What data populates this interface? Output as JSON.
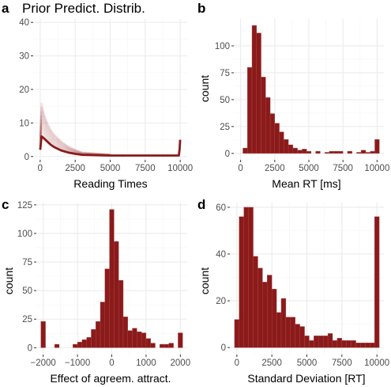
{
  "colors": {
    "bar_fill": "#8b1a1a",
    "bar_edge": "#a94a4a",
    "panel_bg": "#ffffff",
    "grid_major": "#ebebeb",
    "grid_minor": "#f5f5f5",
    "axis_line": "#333333"
  },
  "chart_data": [
    {
      "panel": "a",
      "type": "line",
      "title": "Prior Predict. Distrib.",
      "xlabel": "Reading Times",
      "ylabel": "",
      "xlim": [
        -500,
        10500
      ],
      "ylim": [
        -1,
        41
      ],
      "xticks": [
        0,
        2500,
        5000,
        7500,
        10000
      ],
      "yticks": [
        0,
        10,
        20,
        30,
        40
      ],
      "xtick_labels": [
        "0",
        "2500",
        "5000",
        "7500",
        "10000"
      ],
      "ytick_labels": [
        "0",
        "10",
        "20",
        "30",
        "40"
      ],
      "grid": true,
      "mean_curve": {
        "x": [
          0,
          100,
          250,
          500,
          750,
          1000,
          1500,
          2000,
          2500,
          3000,
          5000,
          7500,
          9900,
          9950,
          10000
        ],
        "y": [
          2,
          6,
          5.5,
          4.5,
          3.5,
          2.8,
          1.8,
          1.2,
          0.8,
          0.5,
          0.3,
          0.3,
          0.3,
          2,
          5
        ]
      },
      "upper_band": {
        "x": [
          0,
          100,
          250,
          500,
          750,
          1000,
          1500,
          2000,
          2500,
          3000,
          5000
        ],
        "y": [
          6,
          16,
          13,
          10,
          8,
          6.5,
          4.5,
          3,
          2,
          1.2,
          0.6
        ]
      }
    },
    {
      "panel": "b",
      "type": "bar",
      "title": "",
      "xlabel": "Mean RT [ms]",
      "ylabel": "count",
      "bin_width": 333.33,
      "xlim": [
        -500,
        10500
      ],
      "ylim": [
        -6,
        125
      ],
      "xticks": [
        0,
        2500,
        5000,
        7500,
        10000
      ],
      "yticks": [
        0,
        25,
        50,
        75,
        100
      ],
      "xtick_labels": [
        "0",
        "2500",
        "5000",
        "7500",
        "10000"
      ],
      "ytick_labels": [
        "0",
        "25",
        "50",
        "75",
        "100"
      ],
      "grid": true,
      "bin_centers": [
        333,
        667,
        1000,
        1333,
        1667,
        2000,
        2333,
        2667,
        3000,
        3333,
        3667,
        4000,
        4333,
        4667,
        5000,
        5333,
        5667,
        6000,
        6333,
        6667,
        7000,
        7333,
        7667,
        8000,
        8333,
        8667,
        9000,
        9333,
        9667,
        10000
      ],
      "values": [
        5,
        80,
        119,
        112,
        71,
        52,
        37,
        28,
        20,
        13,
        8,
        5,
        3,
        4,
        2,
        0,
        2,
        0,
        1,
        2,
        2,
        2,
        0,
        2,
        0,
        1,
        3,
        1,
        2,
        13
      ]
    },
    {
      "panel": "c",
      "type": "bar",
      "title": "",
      "xlabel": "Effect of agreem. attract.",
      "ylabel": "count",
      "bin_width": 133.33,
      "xlim": [
        -2200,
        2200
      ],
      "ylim": [
        -6,
        127
      ],
      "xticks": [
        -2000,
        -1000,
        0,
        1000,
        2000
      ],
      "yticks": [
        0,
        25,
        50,
        75,
        100,
        125
      ],
      "xtick_labels": [
        "−2000",
        "−1000",
        "0",
        "1000",
        "2000"
      ],
      "ytick_labels": [
        "0",
        "25",
        "50",
        "75",
        "100",
        "125"
      ],
      "grid": true,
      "bin_centers": [
        -2000,
        -1867,
        -1733,
        -1600,
        -1467,
        -1333,
        -1200,
        -1067,
        -933,
        -800,
        -667,
        -533,
        -400,
        -267,
        -133,
        0,
        133,
        267,
        400,
        533,
        667,
        800,
        933,
        1067,
        1200,
        1333,
        1467,
        1600,
        1733,
        1867,
        2000
      ],
      "values": [
        23,
        0,
        0,
        3,
        0,
        0,
        0,
        3,
        5,
        7,
        9,
        16,
        23,
        40,
        69,
        121,
        93,
        59,
        27,
        15,
        17,
        14,
        13,
        8,
        4,
        0,
        3,
        3,
        4,
        0,
        13
      ]
    },
    {
      "panel": "d",
      "type": "bar",
      "title": "",
      "xlabel": "Standard Deviation [RT]",
      "ylabel": "count",
      "bin_width": 333.33,
      "xlim": [
        -500,
        10500
      ],
      "ylim": [
        -3,
        62
      ],
      "xticks": [
        0,
        2500,
        5000,
        7500,
        10000
      ],
      "yticks": [
        0,
        20,
        40,
        60
      ],
      "xtick_labels": [
        "0",
        "2500",
        "5000",
        "7500",
        "10000"
      ],
      "ytick_labels": [
        "0",
        "20",
        "40",
        "60"
      ],
      "grid": true,
      "bin_centers": [
        0,
        333,
        667,
        1000,
        1333,
        1667,
        2000,
        2333,
        2667,
        3000,
        3333,
        3667,
        4000,
        4333,
        4667,
        5000,
        5333,
        5667,
        6000,
        6333,
        6667,
        7000,
        7333,
        7667,
        8000,
        8333,
        8667,
        9000,
        9333,
        9667,
        10000
      ],
      "values": [
        12,
        56,
        60,
        60,
        39,
        34,
        28,
        31,
        25,
        15,
        21,
        13,
        13,
        10,
        9,
        5,
        3,
        5,
        5,
        5,
        6,
        3,
        4,
        3,
        3,
        3,
        2,
        2,
        2,
        2,
        56
      ]
    }
  ]
}
